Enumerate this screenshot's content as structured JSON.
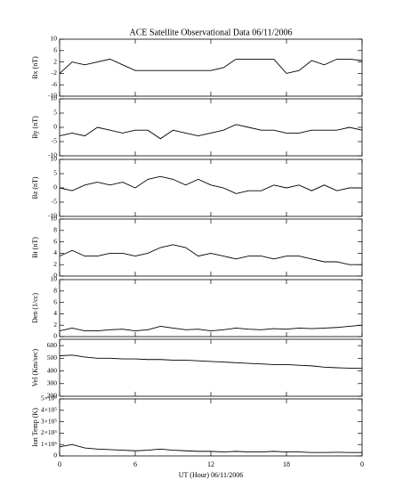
{
  "title": "ACE Satellite Observational Data   06/11/2006",
  "chart_data": [
    {
      "type": "line",
      "ylabel": "Bx (nT)",
      "color": "#000000",
      "xlim": [
        0,
        24
      ],
      "ylim": [
        -10,
        10
      ],
      "yticks": [
        -10,
        -6,
        -2,
        2,
        6,
        10
      ],
      "x": [
        0,
        1,
        2,
        3,
        4,
        5,
        6,
        7,
        8,
        9,
        10,
        11,
        12,
        13,
        14,
        15,
        16,
        17,
        18,
        19,
        20,
        21,
        22,
        23,
        24
      ],
      "values": [
        -2,
        2,
        1,
        2,
        3,
        1,
        -1,
        -1,
        -1,
        -1,
        -1,
        -1,
        -1,
        0,
        3,
        3,
        3,
        3,
        -2,
        -1,
        2.5,
        1,
        3,
        3,
        2.5
      ]
    },
    {
      "type": "line",
      "ylabel": "By (nT)",
      "color": "#000000",
      "xlim": [
        0,
        24
      ],
      "ylim": [
        -10,
        10
      ],
      "yticks": [
        -10,
        -5,
        0,
        5,
        10
      ],
      "x": [
        0,
        1,
        2,
        3,
        4,
        5,
        6,
        7,
        8,
        9,
        10,
        11,
        12,
        13,
        14,
        15,
        16,
        17,
        18,
        19,
        20,
        21,
        22,
        23,
        24
      ],
      "values": [
        -3,
        -2,
        -3,
        0,
        -1,
        -2,
        -1,
        -1,
        -4,
        -1,
        -2,
        -3,
        -2,
        -1,
        1,
        0,
        -1,
        -1,
        -2,
        -2,
        -1,
        -1,
        -1,
        0,
        -1
      ]
    },
    {
      "type": "line",
      "ylabel": "Bz (nT)",
      "color": "#000000",
      "xlim": [
        0,
        24
      ],
      "ylim": [
        -10,
        10
      ],
      "yticks": [
        -10,
        -5,
        0,
        5,
        10
      ],
      "x": [
        0,
        1,
        2,
        3,
        4,
        5,
        6,
        7,
        8,
        9,
        10,
        11,
        12,
        13,
        14,
        15,
        16,
        17,
        18,
        19,
        20,
        21,
        22,
        23,
        24
      ],
      "values": [
        0,
        -1,
        1,
        2,
        1,
        2,
        0,
        3,
        4,
        3,
        1,
        3,
        1,
        0,
        -2,
        -1,
        -1,
        1,
        0,
        1,
        -1,
        1,
        -1,
        0,
        0
      ]
    },
    {
      "type": "line",
      "ylabel": "Bt (nT)",
      "color": "#000000",
      "xlim": [
        0,
        24
      ],
      "ylim": [
        0,
        10
      ],
      "yticks": [
        0,
        2,
        4,
        6,
        8,
        10
      ],
      "x": [
        0,
        1,
        2,
        3,
        4,
        5,
        6,
        7,
        8,
        9,
        10,
        11,
        12,
        13,
        14,
        15,
        16,
        17,
        18,
        19,
        20,
        21,
        22,
        23,
        24
      ],
      "values": [
        3.5,
        4.5,
        3.5,
        3.5,
        4,
        4,
        3.5,
        4,
        5,
        5.5,
        5,
        3.5,
        4,
        3.5,
        3,
        3.5,
        3.5,
        3,
        3.5,
        3.5,
        3,
        2.5,
        2.5,
        2,
        2
      ]
    },
    {
      "type": "line",
      "ylabel": "Den (1/cc)",
      "color": "#000000",
      "xlim": [
        0,
        24
      ],
      "ylim": [
        0,
        10
      ],
      "yticks": [
        0,
        2,
        4,
        6,
        8,
        10
      ],
      "x": [
        0,
        1,
        2,
        3,
        4,
        5,
        6,
        7,
        8,
        9,
        10,
        11,
        12,
        13,
        14,
        15,
        16,
        17,
        18,
        19,
        20,
        21,
        22,
        23,
        24
      ],
      "values": [
        1,
        1.5,
        1,
        1,
        1.2,
        1.3,
        1,
        1.2,
        1.8,
        1.5,
        1.2,
        1.3,
        1,
        1.2,
        1.5,
        1.3,
        1.2,
        1.4,
        1.3,
        1.5,
        1.4,
        1.5,
        1.6,
        1.8,
        2
      ]
    },
    {
      "type": "line",
      "ylabel": "Vel (Km/sec)",
      "color": "#000000",
      "xlim": [
        0,
        24
      ],
      "ylim": [
        200,
        650
      ],
      "yticks": [
        200,
        300,
        400,
        500,
        600
      ],
      "x": [
        0,
        1,
        2,
        3,
        4,
        5,
        6,
        7,
        8,
        9,
        10,
        11,
        12,
        13,
        14,
        15,
        16,
        17,
        18,
        19,
        20,
        21,
        22,
        23,
        24
      ],
      "values": [
        520,
        525,
        510,
        500,
        500,
        495,
        495,
        490,
        490,
        485,
        485,
        480,
        475,
        470,
        465,
        460,
        455,
        450,
        450,
        445,
        440,
        430,
        425,
        422,
        420
      ]
    },
    {
      "type": "line",
      "ylabel": "Ion Temp (K)",
      "color": "#000000",
      "xlim": [
        0,
        24
      ],
      "ylim": [
        0,
        500000
      ],
      "yticks": [
        0,
        {
          "value": 100000,
          "label": "1×10⁵"
        },
        {
          "value": 200000,
          "label": "2×10⁵"
        },
        {
          "value": 300000,
          "label": "3×10⁵"
        },
        {
          "value": 400000,
          "label": "4×10⁵"
        },
        {
          "value": 500000,
          "label": "5×10⁵"
        }
      ],
      "xlabel": "UT (Hour)  06/11/2006",
      "xticks": [
        0,
        6,
        12,
        18,
        {
          "value": 24,
          "label": "0"
        }
      ],
      "x": [
        0,
        1,
        2,
        3,
        4,
        5,
        6,
        7,
        8,
        9,
        10,
        11,
        12,
        13,
        14,
        15,
        16,
        17,
        18,
        19,
        20,
        21,
        22,
        23,
        24
      ],
      "values": [
        80000,
        100000,
        70000,
        60000,
        55000,
        50000,
        45000,
        50000,
        60000,
        50000,
        45000,
        40000,
        40000,
        35000,
        40000,
        35000,
        35000,
        40000,
        35000,
        35000,
        30000,
        30000,
        32000,
        30000,
        30000
      ]
    }
  ]
}
